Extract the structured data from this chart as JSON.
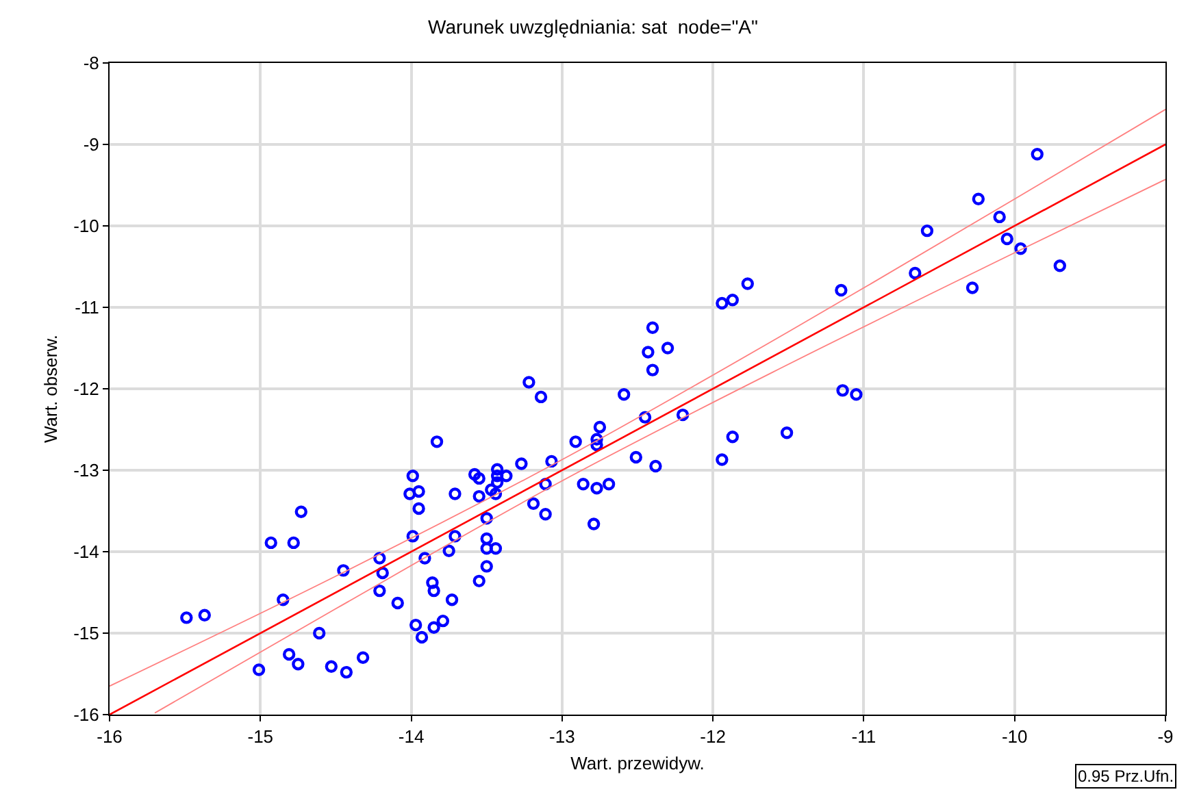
{
  "chart_data": {
    "type": "scatter",
    "title": "Warunek uwzględniania: sat  node=\"A\"",
    "xlabel": "Wart. przewidyw.",
    "ylabel": "Wart. obserw.",
    "xlim": [
      -16,
      -9
    ],
    "ylim": [
      -16,
      -8
    ],
    "xticks": [
      -16,
      -15,
      -14,
      -13,
      -12,
      -11,
      -10,
      -9
    ],
    "yticks": [
      -16,
      -15,
      -14,
      -13,
      -12,
      -11,
      -10,
      -9,
      -8
    ],
    "grid": true,
    "annotations": [
      "0.95 Prz.Ufn."
    ],
    "series": [
      {
        "color": "#0000ff",
        "marker": "circle",
        "x": [
          -15.49,
          -15.37,
          -14.73,
          -14.93,
          -14.78,
          -14.85,
          -14.45,
          -14.21,
          -14.19,
          -14.21,
          -14.09,
          -13.99,
          -14.01,
          -13.95,
          -13.95,
          -13.99,
          -13.91,
          -13.86,
          -13.85,
          -13.71,
          -13.71,
          -13.75,
          -13.73,
          -13.97,
          -13.93,
          -13.85,
          -13.79,
          -14.61,
          -14.81,
          -14.75,
          -15.01,
          -14.53,
          -14.43,
          -14.32,
          -13.22,
          -13.14,
          -13.83,
          -12.59,
          -12.4,
          -12.45,
          -12.2,
          -12.75,
          -12.77,
          -12.77,
          -12.91,
          -12.51,
          -12.38,
          -13.07,
          -13.27,
          -13.43,
          -13.37,
          -13.43,
          -13.43,
          -13.58,
          -13.55,
          -13.47,
          -13.44,
          -13.55,
          -12.86,
          -12.77,
          -12.69,
          -13.11,
          -13.19,
          -13.11,
          -12.79,
          -13.5,
          -13.5,
          -13.5,
          -13.44,
          -13.5,
          -13.55,
          -11.94,
          -11.87,
          -11.77,
          -12.4,
          -12.43,
          -12.3,
          -11.51,
          -11.87,
          -11.94,
          -11.15,
          -10.58,
          -10.66,
          -10.28,
          -10.24,
          -10.1,
          -10.05,
          -9.96,
          -9.85,
          -9.7,
          -11.14,
          -11.05
        ],
        "values": [
          -14.81,
          -14.78,
          -13.51,
          -13.89,
          -13.89,
          -14.59,
          -14.23,
          -14.08,
          -14.26,
          -14.48,
          -14.63,
          -13.07,
          -13.29,
          -13.26,
          -13.47,
          -13.81,
          -14.08,
          -14.38,
          -14.48,
          -13.29,
          -13.81,
          -13.99,
          -14.59,
          -14.9,
          -15.05,
          -14.93,
          -14.85,
          -15.0,
          -15.26,
          -15.38,
          -15.45,
          -15.41,
          -15.48,
          -15.3,
          -11.92,
          -12.1,
          -12.65,
          -12.07,
          -11.77,
          -12.35,
          -12.32,
          -12.47,
          -12.62,
          -12.69,
          -12.65,
          -12.84,
          -12.95,
          -12.89,
          -12.92,
          -12.99,
          -13.07,
          -13.07,
          -13.15,
          -13.05,
          -13.1,
          -13.24,
          -13.29,
          -13.32,
          -13.17,
          -13.22,
          -13.17,
          -13.17,
          -13.41,
          -13.54,
          -13.66,
          -13.59,
          -13.84,
          -13.96,
          -13.96,
          -14.18,
          -14.36,
          -10.95,
          -10.91,
          -10.71,
          -11.25,
          -11.55,
          -11.5,
          -12.54,
          -12.59,
          -12.87,
          -10.79,
          -10.06,
          -10.58,
          -10.76,
          -9.67,
          -9.89,
          -10.16,
          -10.28,
          -9.12,
          -10.49,
          -12.02,
          -12.07
        ]
      },
      {
        "type": "line",
        "color": "#ff0000",
        "marker": "none",
        "line_style": "solid",
        "x": [
          -16,
          -9
        ],
        "values": [
          -16,
          -9.0
        ]
      },
      {
        "type": "line",
        "color": "#ff8080",
        "marker": "none",
        "line_style": "solid",
        "x": [
          -16,
          -14.5,
          -13,
          -11.5,
          -10,
          -9
        ],
        "values": [
          -15.65,
          -14.3,
          -12.87,
          -11.3,
          -9.67,
          -8.57
        ]
      },
      {
        "type": "line",
        "color": "#ff8080",
        "marker": "none",
        "line_style": "solid",
        "x": [
          -15.7,
          -14.5,
          -13,
          -11.5,
          -10,
          -9
        ],
        "values": [
          -15.98,
          -14.7,
          -13.13,
          -11.7,
          -10.33,
          -9.43
        ]
      }
    ]
  }
}
